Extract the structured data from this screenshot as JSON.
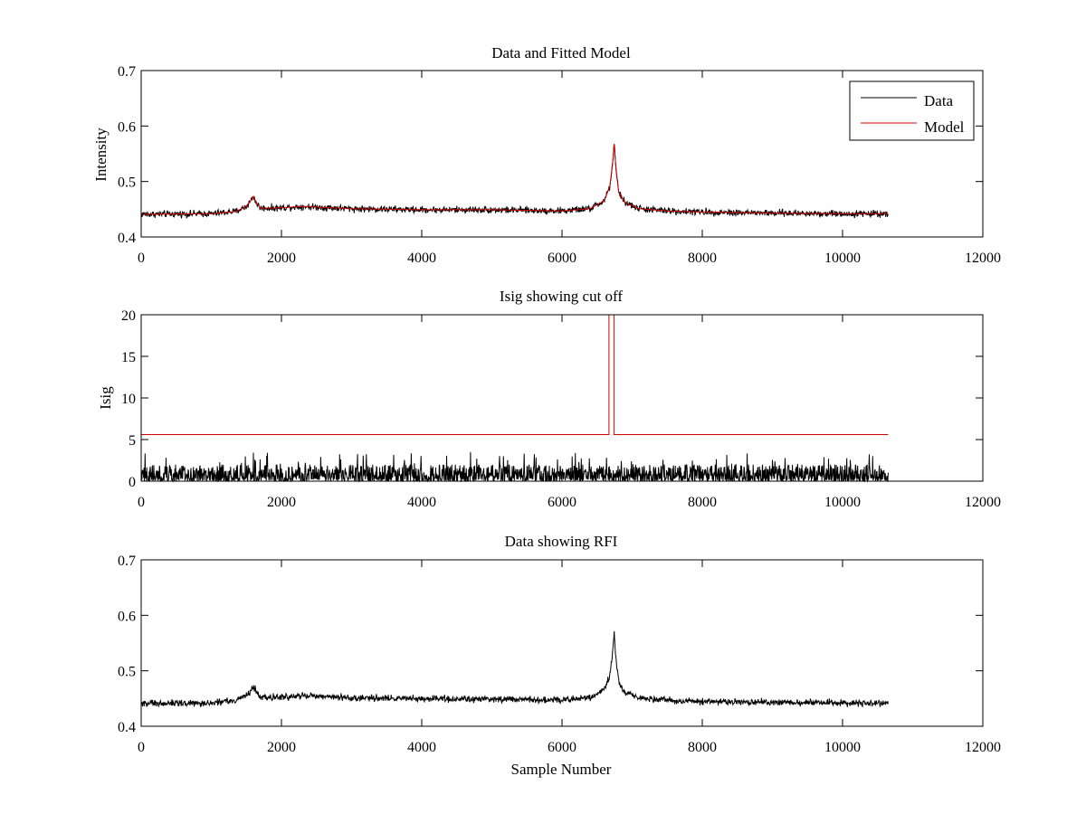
{
  "chart_data": [
    {
      "type": "line",
      "title": "Data and Fitted Model",
      "xlabel": "",
      "ylabel": "Intensity",
      "xlim": [
        0,
        12000
      ],
      "ylim": [
        0.4,
        0.7
      ],
      "xticks": [
        0,
        2000,
        4000,
        6000,
        8000,
        10000,
        12000
      ],
      "yticks": [
        0.4,
        0.5,
        0.6,
        0.7
      ],
      "xtick_labels": [
        "0",
        "2000",
        "4000",
        "6000",
        "8000",
        "10000",
        "12000"
      ],
      "ytick_labels": [
        "0.4",
        "0.5",
        "0.6",
        "0.7"
      ],
      "grid": false,
      "legend": {
        "placement": "top-right",
        "entries": [
          "Data",
          "Model"
        ]
      },
      "series": [
        {
          "name": "Data",
          "color": "#000000",
          "style": "noisy",
          "noise_amplitude": 0.009,
          "x": [
            0,
            1000,
            1350,
            1500,
            1560,
            1600,
            1640,
            1700,
            1900,
            2300,
            3000,
            4000,
            5000,
            6000,
            6400,
            6600,
            6680,
            6720,
            6745,
            6770,
            6810,
            6900,
            7100,
            7500,
            8000,
            9000,
            10000,
            10650
          ],
          "y": [
            0.441,
            0.442,
            0.446,
            0.455,
            0.465,
            0.473,
            0.462,
            0.452,
            0.452,
            0.455,
            0.451,
            0.449,
            0.449,
            0.447,
            0.451,
            0.465,
            0.49,
            0.53,
            0.568,
            0.52,
            0.48,
            0.462,
            0.451,
            0.447,
            0.445,
            0.443,
            0.442,
            0.442
          ]
        },
        {
          "name": "Model",
          "color": "#d40000",
          "style": "smooth",
          "x": [
            0,
            1000,
            1350,
            1500,
            1560,
            1600,
            1640,
            1700,
            1900,
            2300,
            3000,
            4000,
            5000,
            6000,
            6400,
            6600,
            6680,
            6720,
            6745,
            6770,
            6810,
            6900,
            7100,
            7500,
            8000,
            9000,
            10000,
            10650
          ],
          "y": [
            0.441,
            0.442,
            0.446,
            0.455,
            0.465,
            0.473,
            0.462,
            0.452,
            0.452,
            0.455,
            0.451,
            0.449,
            0.449,
            0.447,
            0.451,
            0.465,
            0.49,
            0.53,
            0.568,
            0.52,
            0.48,
            0.462,
            0.451,
            0.447,
            0.445,
            0.443,
            0.442,
            0.442
          ]
        }
      ]
    },
    {
      "type": "line",
      "title": "Isig showing cut off",
      "xlabel": "",
      "ylabel": "Isig",
      "xlim": [
        0,
        12000
      ],
      "ylim": [
        0,
        20
      ],
      "xticks": [
        0,
        2000,
        4000,
        6000,
        8000,
        10000,
        12000
      ],
      "yticks": [
        0,
        5,
        10,
        15,
        20
      ],
      "xtick_labels": [
        "0",
        "2000",
        "4000",
        "6000",
        "8000",
        "10000",
        "12000"
      ],
      "ytick_labels": [
        "0",
        "5",
        "10",
        "15",
        "20"
      ],
      "grid": false,
      "series": [
        {
          "color": "#000000",
          "style": "spiky",
          "x_end": 10650,
          "typical_max": 2.0,
          "peak_max": 3.5
        },
        {
          "color": "#d40000",
          "style": "step",
          "x": [
            0,
            6670,
            6670,
            6740,
            6740,
            10650
          ],
          "y": [
            5.6,
            5.6,
            20,
            20,
            5.6,
            5.6
          ]
        }
      ]
    },
    {
      "type": "line",
      "title": "Data showing RFI",
      "xlabel": "Sample Number",
      "ylabel": "",
      "xlim": [
        0,
        12000
      ],
      "ylim": [
        0.4,
        0.7
      ],
      "xticks": [
        0,
        2000,
        4000,
        6000,
        8000,
        10000,
        12000
      ],
      "yticks": [
        0.4,
        0.5,
        0.6,
        0.7
      ],
      "xtick_labels": [
        "0",
        "2000",
        "4000",
        "6000",
        "8000",
        "10000",
        "12000"
      ],
      "ytick_labels": [
        "0.4",
        "0.5",
        "0.6",
        "0.7"
      ],
      "grid": false,
      "series": [
        {
          "color": "#000000",
          "style": "noisy",
          "noise_amplitude": 0.009,
          "x": [
            0,
            1000,
            1350,
            1500,
            1560,
            1600,
            1640,
            1700,
            1900,
            2300,
            3000,
            4000,
            5000,
            6000,
            6400,
            6600,
            6680,
            6720,
            6745,
            6770,
            6810,
            6900,
            7100,
            7500,
            8000,
            9000,
            10000,
            10650
          ],
          "y": [
            0.441,
            0.442,
            0.446,
            0.455,
            0.465,
            0.473,
            0.462,
            0.452,
            0.452,
            0.455,
            0.451,
            0.449,
            0.449,
            0.447,
            0.451,
            0.465,
            0.49,
            0.53,
            0.568,
            0.52,
            0.48,
            0.462,
            0.451,
            0.447,
            0.445,
            0.443,
            0.442,
            0.442
          ]
        }
      ]
    }
  ]
}
